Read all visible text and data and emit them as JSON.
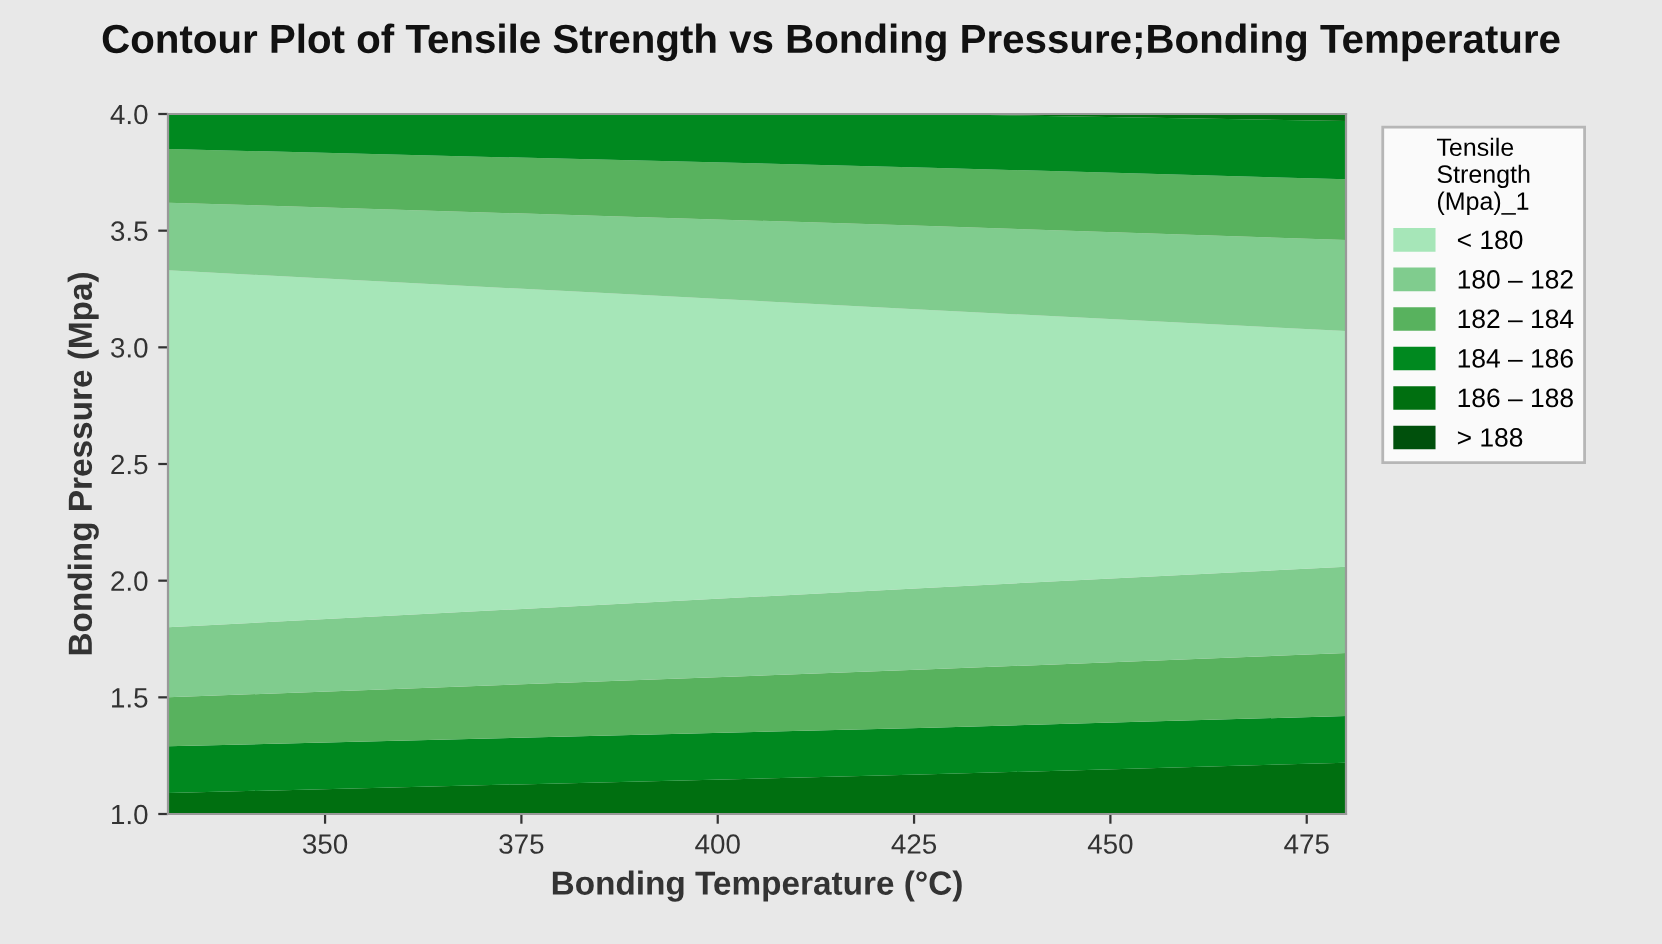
{
  "chart_data": {
    "type": "area",
    "title": "Contour Plot of Tensile Strength vs Bonding Pressure;Bonding Temperature",
    "xlabel": "Bonding Temperature (°C)",
    "ylabel": "Bonding Pressure (Mpa)",
    "legend_title": "Tensile\nStrength\n(Mpa)_1",
    "x": [
      330,
      427,
      480
    ],
    "series": [
      {
        "name": "> 188",
        "color": "#00500c",
        "values": [
          null,
          null,
          null
        ]
      },
      {
        "name": "186 – 188",
        "color": "#006f10",
        "values": [
          1.09,
          1.17,
          1.22
        ]
      },
      {
        "name": "184 – 186",
        "color": "#00891f",
        "values": [
          1.29,
          1.37,
          1.42
        ]
      },
      {
        "name": "182 – 184",
        "color": "#58b25e",
        "values": [
          1.5,
          1.62,
          1.69
        ]
      },
      {
        "name": "180 – 182",
        "color": "#80cc8e",
        "values": [
          1.8,
          1.97,
          2.06
        ]
      },
      {
        "name": "< 180",
        "color": "#a6e6b8",
        "values": [
          3.33,
          3.16,
          3.07
        ]
      },
      {
        "color": "#80cc8e",
        "values": [
          3.62,
          3.52,
          3.46
        ]
      },
      {
        "color": "#58b25e",
        "values": [
          3.85,
          3.77,
          3.72
        ]
      },
      {
        "color": "#00891f",
        "values": [
          4.0,
          4.0,
          3.97
        ]
      },
      {
        "color": "#006f10",
        "values": [
          4.0,
          4.0,
          4.0
        ]
      }
    ],
    "xlim": [
      330,
      480
    ],
    "ylim": [
      1.0,
      4.0
    ],
    "xticks": [
      350,
      375,
      400,
      425,
      450,
      475
    ],
    "yticks": [
      {
        "value": 1.0,
        "label": "1.0"
      },
      {
        "value": 1.5,
        "label": "1.5"
      },
      {
        "value": 2.0,
        "label": "2.0"
      },
      {
        "value": 2.5,
        "label": "2.5"
      },
      {
        "value": 3.0,
        "label": "3.0"
      },
      {
        "value": 3.5,
        "label": "3.5"
      },
      {
        "value": 4.0,
        "label": "4.0"
      }
    ],
    "grid": false,
    "legend": "right"
  }
}
